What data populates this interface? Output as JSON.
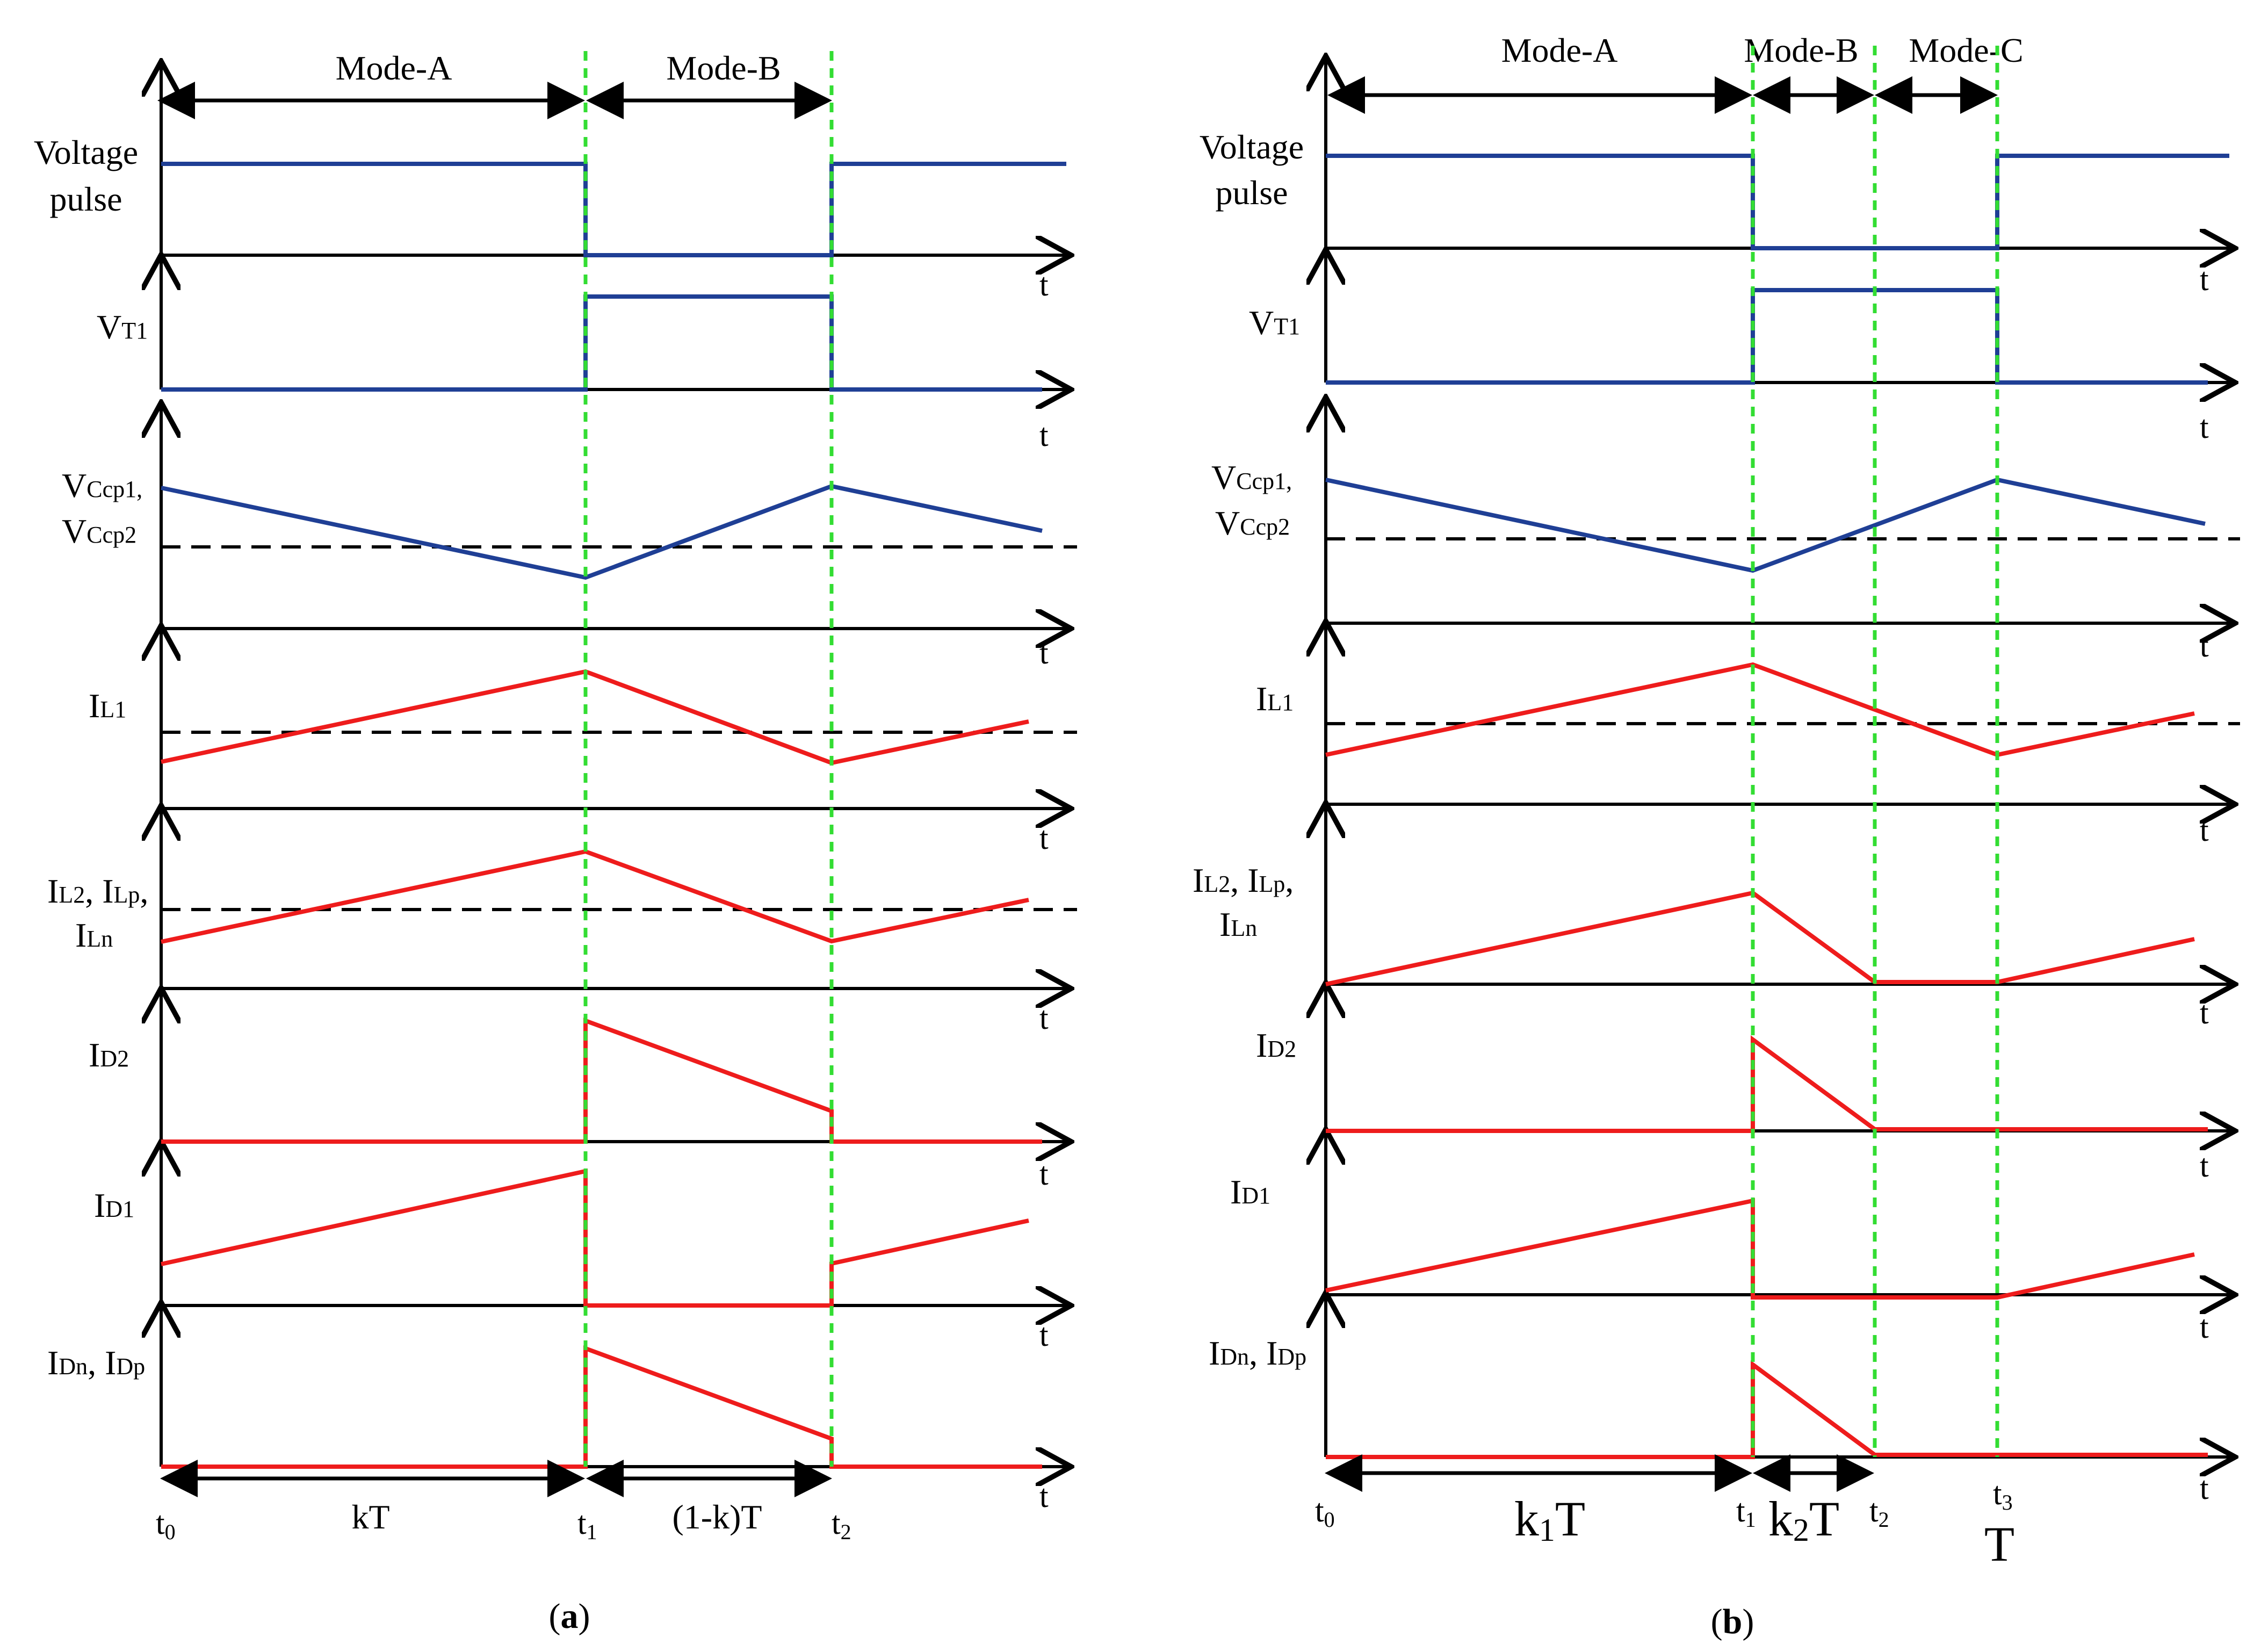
{
  "figure": {
    "colors": {
      "voltage_trace": "#1f3f95",
      "current_trace": "#ee1c1c",
      "guide_line": "#33dd33",
      "axis": "#000000",
      "average_dashed": "#000000"
    },
    "panel_a": {
      "caption": {
        "open": "(",
        "letter": "a",
        "close": ")"
      },
      "modes": [
        "Mode-A",
        "Mode-B"
      ],
      "time_markers": [
        "t0",
        "t1",
        "t2"
      ],
      "intervals": [
        "kT",
        "(1-k)T"
      ],
      "axis_label": "t",
      "signals": [
        {
          "name": "voltage-pulse",
          "label_lines": [
            "Voltage",
            "pulse"
          ],
          "color_key": "voltage_trace",
          "levels": [
            1,
            0,
            1
          ]
        },
        {
          "name": "vt1",
          "label_main": "V",
          "label_sub": "T1",
          "color_key": "voltage_trace",
          "levels": [
            0,
            1,
            0
          ]
        },
        {
          "name": "vccp",
          "label_line1_main": "V",
          "label_line1_sub": "Ccp1,",
          "label_line2_main": "V",
          "label_line2_sub": "Ccp2",
          "color_key": "voltage_trace",
          "shape": "decreasing-increasing-decreasing",
          "dashed_average": true
        },
        {
          "name": "il1",
          "label_main": "I",
          "label_sub": "L1",
          "color_key": "current_trace",
          "shape": "increasing-decreasing-increasing",
          "dashed_average": true
        },
        {
          "name": "il2",
          "label_parts": [
            "I",
            "L2",
            ", I",
            "Lp",
            ","
          ],
          "label_line2_main": "I",
          "label_line2_sub": "Ln",
          "color_key": "current_trace",
          "shape": "increasing-decreasing-increasing",
          "dashed_average": true
        },
        {
          "name": "id2",
          "label_main": "I",
          "label_sub": "D2",
          "color_key": "current_trace",
          "shape": "zero-step-decreasing-zero"
        },
        {
          "name": "id1",
          "label_main": "I",
          "label_sub": "D1",
          "color_key": "current_trace",
          "shape": "increasing-zero-increasing"
        },
        {
          "name": "idn-idp",
          "label_parts": [
            "I",
            "Dn",
            ", I",
            "Dp"
          ],
          "color_key": "current_trace",
          "shape": "zero-step-decreasing-zero"
        }
      ]
    },
    "panel_b": {
      "caption": {
        "open": "(",
        "letter": "b",
        "close": ")"
      },
      "modes": [
        "Mode-A",
        "Mode-B",
        "Mode-C"
      ],
      "time_markers": [
        "t0",
        "t1",
        "t2",
        "t3"
      ],
      "intervals": [
        "k1T",
        "k2T"
      ],
      "period_label": "T",
      "axis_label": "t",
      "signals": [
        {
          "name": "voltage-pulse",
          "label_lines": [
            "Voltage",
            "pulse"
          ],
          "color_key": "voltage_trace",
          "levels": [
            1,
            0,
            0,
            1
          ]
        },
        {
          "name": "vt1",
          "label_main": "V",
          "label_sub": "T1",
          "color_key": "voltage_trace",
          "levels": [
            0,
            1,
            1,
            0
          ]
        },
        {
          "name": "vccp",
          "label_line1_main": "V",
          "label_line1_sub": "Ccp1,",
          "label_line2_main": "V",
          "label_line2_sub": "Ccp2",
          "color_key": "voltage_trace",
          "shape": "decreasing-increasing-decreasing",
          "dashed_average": true
        },
        {
          "name": "il1",
          "label_main": "I",
          "label_sub": "L1",
          "color_key": "current_trace",
          "shape": "increasing-decreasing-increasing",
          "dashed_average": true
        },
        {
          "name": "il2",
          "label_parts": [
            "I",
            "L2",
            ", I",
            "Lp",
            ","
          ],
          "label_line2_main": "I",
          "label_line2_sub": "Ln",
          "color_key": "current_trace",
          "shape": "increasing-decreasing-zero-increasing"
        },
        {
          "name": "id2",
          "label_main": "I",
          "label_sub": "D2",
          "color_key": "current_trace",
          "shape": "zero-step-decreasing-zero"
        },
        {
          "name": "id1",
          "label_main": "I",
          "label_sub": "D1",
          "color_key": "current_trace",
          "shape": "increasing-zero-increasing"
        },
        {
          "name": "idn-idp",
          "label_parts": [
            "I",
            "Dn",
            ", I",
            "Dp"
          ],
          "color_key": "current_trace",
          "shape": "zero-step-decreasing-zero"
        }
      ]
    }
  }
}
